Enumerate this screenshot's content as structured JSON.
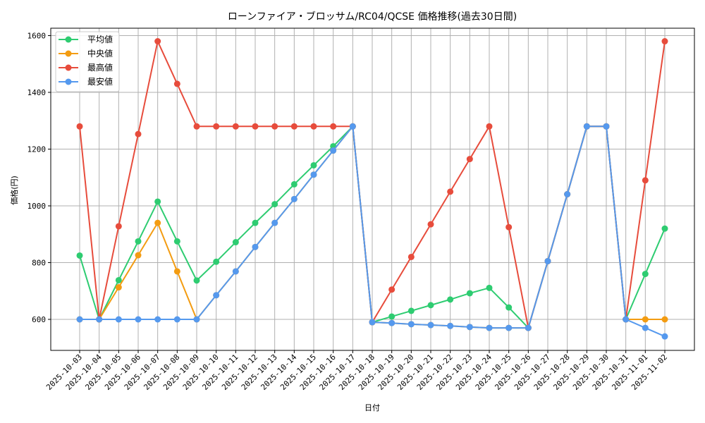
{
  "chart_data": {
    "type": "line",
    "title": "ローンファイア・ブロッサム/RC04/QCSE 価格推移(過去30日間)",
    "xlabel": "日付",
    "ylabel": "価格(円)",
    "ylim": [
      490,
      1625
    ],
    "yticks": [
      600,
      800,
      1000,
      1200,
      1400,
      1600
    ],
    "grid": true,
    "legend_position": "upper left",
    "x": [
      "2025-10-03",
      "2025-10-04",
      "2025-10-05",
      "2025-10-06",
      "2025-10-07",
      "2025-10-08",
      "2025-10-09",
      "2025-10-10",
      "2025-10-11",
      "2025-10-12",
      "2025-10-13",
      "2025-10-14",
      "2025-10-15",
      "2025-10-16",
      "2025-10-17",
      "2025-10-18",
      "2025-10-19",
      "2025-10-20",
      "2025-10-21",
      "2025-10-22",
      "2025-10-23",
      "2025-10-24",
      "2025-10-25",
      "2025-10-26",
      "2025-10-27",
      "2025-10-28",
      "2025-10-29",
      "2025-10-30",
      "2025-10-31",
      "2025-11-01",
      "2025-11-02"
    ],
    "series": [
      {
        "name": "平均値",
        "color": "#2ecc71",
        "values": [
          825,
          600,
          738,
          875,
          1015,
          875,
          737,
          803,
          872,
          940,
          1006,
          1076,
          1143,
          1210,
          1280,
          590,
          610,
          630,
          650,
          670,
          692,
          711,
          642,
          570,
          805,
          1041,
          1280,
          1280,
          600,
          760,
          920
        ]
      },
      {
        "name": "中央値",
        "color": "#f39c12",
        "values": [
          600,
          600,
          713,
          826,
          940,
          769,
          600,
          685,
          769,
          855,
          940,
          1024,
          1110,
          1195,
          1280,
          590,
          587,
          583,
          580,
          577,
          573,
          570,
          570,
          570,
          805,
          1041,
          1280,
          1280,
          600,
          600,
          600
        ]
      },
      {
        "name": "最高値",
        "color": "#e74c3c",
        "values": [
          1280,
          600,
          928,
          1253,
          1580,
          1430,
          1280,
          1280,
          1280,
          1280,
          1280,
          1280,
          1280,
          1280,
          1280,
          590,
          705,
          820,
          935,
          1050,
          1165,
          1280,
          925,
          570,
          805,
          1041,
          1280,
          1280,
          600,
          1090,
          1580
        ]
      },
      {
        "name": "最安値",
        "color": "#5599ee",
        "values": [
          600,
          600,
          600,
          600,
          600,
          600,
          600,
          685,
          769,
          855,
          940,
          1024,
          1110,
          1195,
          1280,
          590,
          587,
          583,
          580,
          577,
          573,
          570,
          570,
          570,
          805,
          1041,
          1280,
          1280,
          600,
          570,
          540
        ]
      }
    ]
  }
}
